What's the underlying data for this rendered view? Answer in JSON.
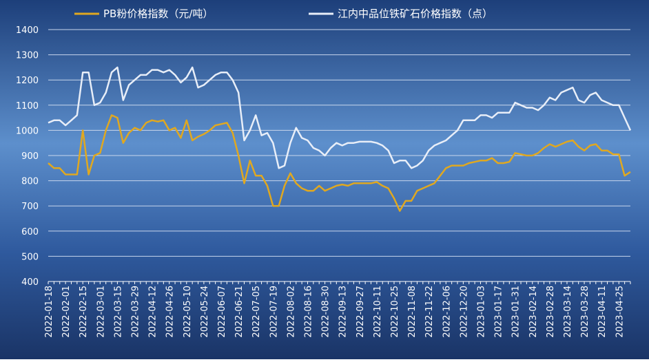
{
  "chart_data": {
    "type": "line",
    "categories": [
      "2022-01-18",
      null,
      null,
      "2022-02-01",
      null,
      null,
      "2022-02-15",
      null,
      null,
      "2022-03-01",
      null,
      null,
      "2022-03-15",
      null,
      null,
      "2022-03-29",
      null,
      null,
      "2022-04-12",
      null,
      null,
      "2022-04-26",
      null,
      null,
      "2022-05-10",
      null,
      null,
      "2022-05-24",
      null,
      null,
      "2022-06-07",
      null,
      null,
      "2022-06-21",
      null,
      null,
      "2022-07-05",
      null,
      null,
      "2022-07-19",
      null,
      null,
      "2022-08-02",
      null,
      null,
      "2022-08-16",
      null,
      null,
      "2022-08-30",
      null,
      null,
      "2022-09-13",
      null,
      null,
      "2022-09-27",
      null,
      null,
      "2022-10-11",
      null,
      null,
      "2022-10-25",
      null,
      null,
      "2022-11-08",
      null,
      null,
      "2022-11-22",
      null,
      null,
      "2022-12-06",
      null,
      null,
      "2022-12-20",
      null,
      null,
      "2023-01-03",
      null,
      null,
      "2023-01-17",
      null,
      null,
      "2023-01-31",
      null,
      null,
      "2023-02-14",
      null,
      null,
      "2023-02-28",
      null,
      null,
      "2023-03-14",
      null,
      null,
      "2023-03-28",
      null,
      null,
      "2023-04-11",
      null,
      null,
      "2023-04-25",
      null,
      null
    ],
    "series": [
      {
        "name": "PB粉价格指数（元/吨）",
        "color": "#e0a820",
        "values": [
          870,
          850,
          850,
          825,
          825,
          825,
          1000,
          825,
          900,
          910,
          1000,
          1060,
          1050,
          950,
          990,
          1010,
          1000,
          1030,
          1040,
          1035,
          1040,
          1000,
          1010,
          970,
          1040,
          960,
          975,
          985,
          1000,
          1020,
          1025,
          1030,
          990,
          900,
          790,
          880,
          820,
          820,
          780,
          700,
          700,
          780,
          830,
          790,
          770,
          760,
          760,
          780,
          760,
          770,
          780,
          785,
          780,
          790,
          790,
          790,
          790,
          795,
          780,
          770,
          730,
          680,
          720,
          720,
          760,
          770,
          780,
          790,
          820,
          850,
          860,
          860,
          860,
          870,
          875,
          880,
          880,
          890,
          870,
          870,
          875,
          910,
          905,
          900,
          900,
          910,
          930,
          945,
          935,
          945,
          955,
          960,
          935,
          920,
          940,
          945,
          920,
          920,
          905,
          905,
          820,
          835
        ]
      },
      {
        "name": "江内中品位铁矿石价格指数（点）",
        "color": "#e8eef8",
        "values": [
          1030,
          1040,
          1040,
          1020,
          1040,
          1060,
          1230,
          1230,
          1100,
          1110,
          1150,
          1230,
          1250,
          1120,
          1180,
          1200,
          1220,
          1220,
          1240,
          1240,
          1230,
          1240,
          1220,
          1190,
          1210,
          1250,
          1170,
          1180,
          1200,
          1220,
          1230,
          1230,
          1200,
          1150,
          960,
          1000,
          1060,
          980,
          990,
          950,
          850,
          860,
          950,
          1010,
          970,
          960,
          930,
          920,
          900,
          930,
          950,
          940,
          950,
          950,
          955,
          955,
          955,
          950,
          940,
          920,
          870,
          880,
          880,
          850,
          860,
          880,
          920,
          940,
          950,
          960,
          980,
          1000,
          1040,
          1040,
          1040,
          1060,
          1060,
          1050,
          1070,
          1070,
          1070,
          1110,
          1100,
          1090,
          1090,
          1080,
          1100,
          1130,
          1120,
          1150,
          1160,
          1170,
          1120,
          1110,
          1140,
          1150,
          1120,
          1110,
          1100,
          1100,
          1050,
          1000
        ]
      }
    ],
    "ylim": [
      400,
      1400
    ],
    "yticks": [
      400,
      500,
      600,
      700,
      800,
      900,
      1000,
      1100,
      1200,
      1300,
      1400
    ],
    "grid": true
  }
}
